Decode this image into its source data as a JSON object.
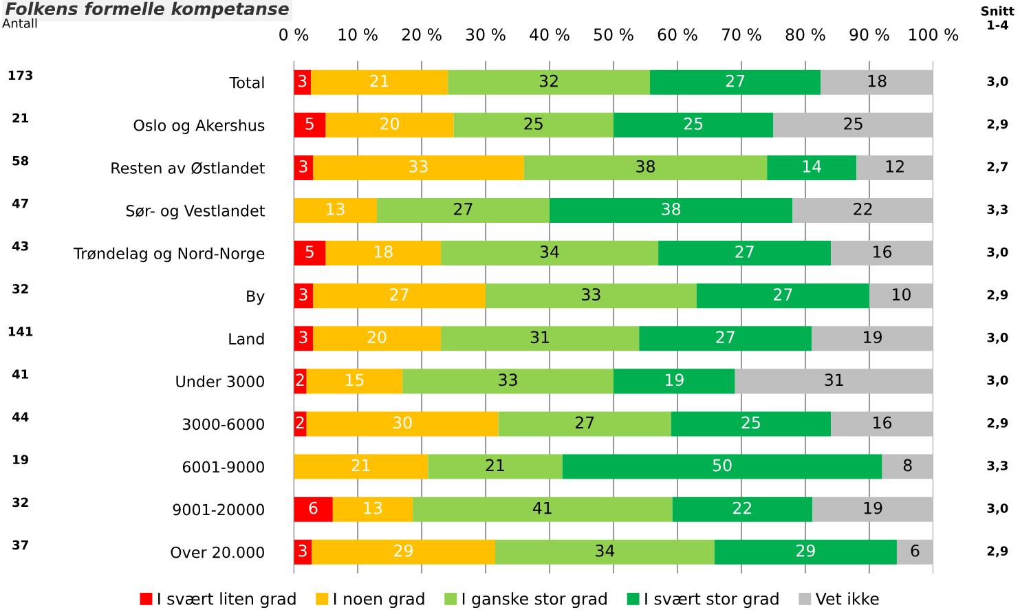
{
  "chart_data": {
    "type": "bar",
    "orientation": "horizontal",
    "stacked": true,
    "title": "Folkens formelle kompetanse",
    "categories": [
      "Total",
      "Oslo og Akershus",
      "Resten av Østlandet",
      "Sør- og Vestlandet",
      "Trøndelag og Nord-Norge",
      "By",
      "Land",
      "Under 3000",
      "3000-6000",
      "6001-9000",
      "9001-20000",
      "Over 20.000"
    ],
    "series": [
      {
        "name": "I svært liten grad",
        "color": "#ff0000",
        "values": [
          2.7,
          5,
          3,
          0,
          5,
          3,
          3,
          2,
          2,
          0,
          6.1,
          2.8
        ],
        "value_labels": [
          "3",
          "5",
          "3",
          null,
          "5",
          "3",
          "3",
          "2",
          "2",
          null,
          "6",
          "3"
        ]
      },
      {
        "name": "I noen grad",
        "color": "#ffc000",
        "values": [
          21.4,
          20,
          33,
          13,
          18,
          27,
          20,
          15,
          30,
          21,
          12.5,
          28.7
        ],
        "value_labels": [
          "21",
          "20",
          "33",
          "13",
          "18",
          "27",
          "20",
          "15",
          "30",
          "21",
          "13",
          "29"
        ]
      },
      {
        "name": "I ganske stor grad",
        "color": "#92d050",
        "values": [
          31.6,
          25,
          38,
          27,
          34,
          33,
          31,
          33,
          27,
          21,
          40.6,
          34.3
        ],
        "value_labels": [
          "32",
          "25",
          "38",
          "27",
          "34",
          "33",
          "31",
          "33",
          "27",
          "21",
          "41",
          "34"
        ]
      },
      {
        "name": "I svært stor grad",
        "color": "#00b050",
        "values": [
          26.7,
          25,
          14,
          38,
          27,
          27,
          27,
          19,
          25,
          50,
          21.9,
          28.5
        ],
        "value_labels": [
          "27",
          "25",
          "14",
          "38",
          "27",
          "27",
          "27",
          "19",
          "25",
          "50",
          "22",
          "29"
        ]
      },
      {
        "name": "Vet ikke",
        "color": "#bfbfbf",
        "values": [
          17.6,
          25,
          12,
          22,
          16,
          10,
          19,
          31,
          16,
          8,
          18.9,
          5.7
        ],
        "value_labels": [
          "18",
          "25",
          "12",
          "22",
          "16",
          "10",
          "19",
          "31",
          "16",
          "8",
          "19",
          "6"
        ]
      }
    ],
    "xlim": [
      0,
      100
    ],
    "xticks": [
      {
        "value": 0,
        "label": "0 %"
      },
      {
        "value": 10,
        "label": "10 %"
      },
      {
        "value": 20,
        "label": "20 %"
      },
      {
        "value": 30,
        "label": "30 %"
      },
      {
        "value": 40,
        "label": "40 %"
      },
      {
        "value": 50,
        "label": "50 %"
      },
      {
        "value": 60,
        "label": "60 %"
      },
      {
        "value": 70,
        "label": "70 %"
      },
      {
        "value": 80,
        "label": "80 %"
      },
      {
        "value": 90,
        "label": "90 %"
      },
      {
        "value": 100,
        "label": "100 %"
      }
    ],
    "grid": "x",
    "legend": "bottom",
    "annotations": [
      "Antall",
      "Snitt\n1-4",
      "173",
      "21",
      "58",
      "47",
      "43",
      "32",
      "141",
      "41",
      "44",
      "19",
      "32",
      "37",
      "3,0",
      "2,9",
      "2,7",
      "3,3",
      "3,0",
      "2,9",
      "3,0",
      "3,0",
      "2,9",
      "3,3",
      "3,0",
      "2,9"
    ]
  }
}
